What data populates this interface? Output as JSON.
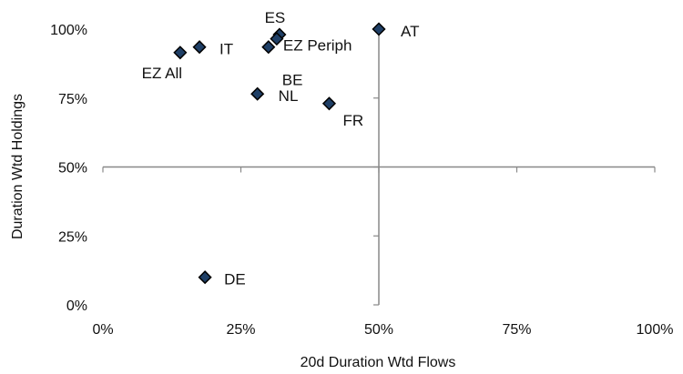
{
  "chart_data": {
    "type": "scatter",
    "title": "",
    "xlabel": "20d Duration Wtd Flows",
    "ylabel": "Duration Wtd Holdings",
    "xlim": [
      0,
      1
    ],
    "ylim": [
      0,
      1
    ],
    "x_ticks": [
      "0%",
      "25%",
      "50%",
      "75%",
      "100%"
    ],
    "y_ticks": [
      "0%",
      "25%",
      "50%",
      "75%",
      "100%"
    ],
    "axis_cross": {
      "x": 0.5,
      "y": 0.5
    },
    "marker": {
      "shape": "diamond",
      "fill": "#1f3f66",
      "stroke": "#000000"
    },
    "grid": false,
    "legend": "none",
    "points": [
      {
        "label": "AT",
        "x": 0.5,
        "y": 1.0
      },
      {
        "label": "ES",
        "x": 0.32,
        "y": 0.98
      },
      {
        "label": "EZ Periph",
        "x": 0.315,
        "y": 0.965
      },
      {
        "label": "BE",
        "x": 0.3,
        "y": 0.935
      },
      {
        "label": "IT",
        "x": 0.175,
        "y": 0.935
      },
      {
        "label": "EZ All",
        "x": 0.14,
        "y": 0.915
      },
      {
        "label": "NL",
        "x": 0.28,
        "y": 0.765
      },
      {
        "label": "FR",
        "x": 0.41,
        "y": 0.73
      },
      {
        "label": "DE",
        "x": 0.185,
        "y": 0.1
      }
    ]
  }
}
